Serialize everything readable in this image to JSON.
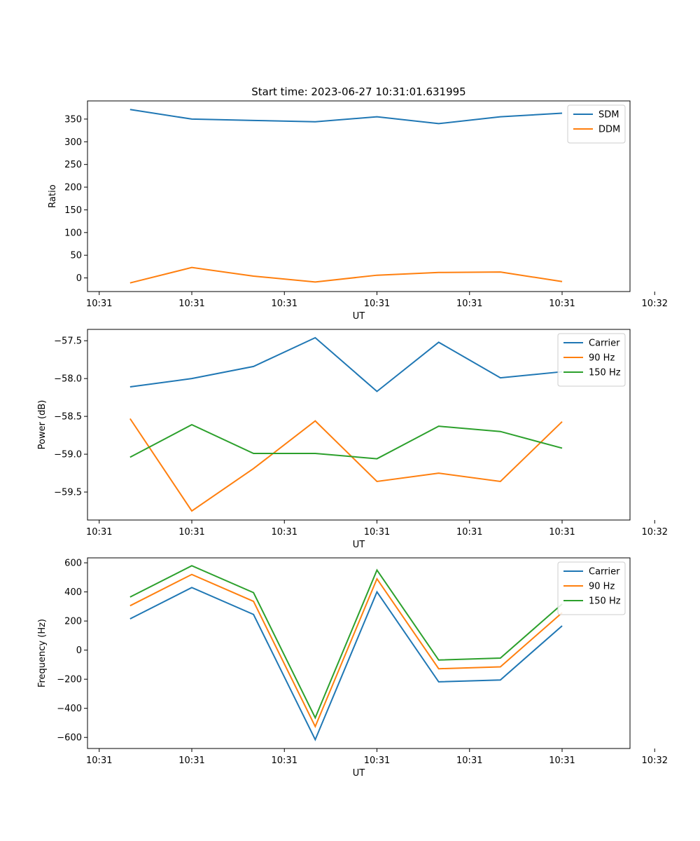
{
  "figure": {
    "title": "Start time: 2023-06-27 10:31:01.631995"
  },
  "chart_data": [
    {
      "type": "line",
      "xlabel": "UT",
      "ylabel": "Ratio",
      "x": [
        1,
        2,
        3,
        4,
        5,
        6,
        7,
        8
      ],
      "xlim": [
        0.31,
        9.1
      ],
      "xtick_values": [
        0.5,
        2,
        3.5,
        5,
        6.5,
        8,
        9.5
      ],
      "xtick_labels": [
        "10:31",
        "10:31",
        "10:31",
        "10:31",
        "10:31",
        "10:31",
        "10:32"
      ],
      "ylim": [
        -30,
        390
      ],
      "yticks": [
        0,
        50,
        100,
        150,
        200,
        250,
        300,
        350
      ],
      "legend": "top-right",
      "series": [
        {
          "name": "SDM",
          "color": "#1f77b4",
          "values": [
            371,
            350,
            347,
            344,
            355,
            340,
            355,
            363
          ]
        },
        {
          "name": "DDM",
          "color": "#ff7f0e",
          "values": [
            -11,
            23,
            4,
            -9,
            6,
            12,
            13,
            -8
          ]
        }
      ]
    },
    {
      "type": "line",
      "xlabel": "UT",
      "ylabel": "Power (dB)",
      "x": [
        1,
        2,
        3,
        4,
        5,
        6,
        7,
        8
      ],
      "xlim": [
        0.31,
        9.1
      ],
      "xtick_values": [
        0.5,
        2,
        3.5,
        5,
        6.5,
        8,
        9.5
      ],
      "xtick_labels": [
        "10:31",
        "10:31",
        "10:31",
        "10:31",
        "10:31",
        "10:31",
        "10:32"
      ],
      "ylim": [
        -59.87,
        -57.35
      ],
      "yticks": [
        -59.5,
        -59.0,
        -58.5,
        -58.0,
        -57.5
      ],
      "ytick_labels": [
        "−59.5",
        "−59.0",
        "−58.5",
        "−58.0",
        "−57.5"
      ],
      "legend": "top-right",
      "series": [
        {
          "name": "Carrier",
          "color": "#1f77b4",
          "values": [
            -58.11,
            -58.0,
            -57.84,
            -57.46,
            -58.17,
            -57.52,
            -57.99,
            -57.91
          ]
        },
        {
          "name": "90 Hz",
          "color": "#ff7f0e",
          "values": [
            -58.53,
            -59.75,
            -59.19,
            -58.56,
            -59.36,
            -59.25,
            -59.36,
            -58.57
          ]
        },
        {
          "name": "150 Hz",
          "color": "#2ca02c",
          "values": [
            -59.04,
            -58.61,
            -58.99,
            -58.99,
            -59.06,
            -58.63,
            -58.7,
            -58.92
          ]
        }
      ]
    },
    {
      "type": "line",
      "xlabel": "UT",
      "ylabel": "Frequency (Hz)",
      "x": [
        1,
        2,
        3,
        4,
        5,
        6,
        7,
        8
      ],
      "xlim": [
        0.31,
        9.1
      ],
      "xtick_values": [
        0.5,
        2,
        3.5,
        5,
        6.5,
        8,
        9.5
      ],
      "xtick_labels": [
        "10:31",
        "10:31",
        "10:31",
        "10:31",
        "10:31",
        "10:31",
        "10:32"
      ],
      "ylim": [
        -676,
        634
      ],
      "yticks": [
        -600,
        -400,
        -200,
        0,
        200,
        400,
        600
      ],
      "ytick_labels": [
        "−600",
        "−400",
        "−200",
        "0",
        "200",
        "400",
        "600"
      ],
      "legend": "top-right",
      "series": [
        {
          "name": "Carrier",
          "color": "#1f77b4",
          "values": [
            215,
            430,
            245,
            -615,
            400,
            -218,
            -205,
            167
          ]
        },
        {
          "name": "90 Hz",
          "color": "#ff7f0e",
          "values": [
            305,
            520,
            335,
            -525,
            490,
            -128,
            -115,
            257
          ]
        },
        {
          "name": "150 Hz",
          "color": "#2ca02c",
          "values": [
            365,
            580,
            395,
            -465,
            550,
            -68,
            -55,
            317
          ]
        }
      ]
    }
  ]
}
